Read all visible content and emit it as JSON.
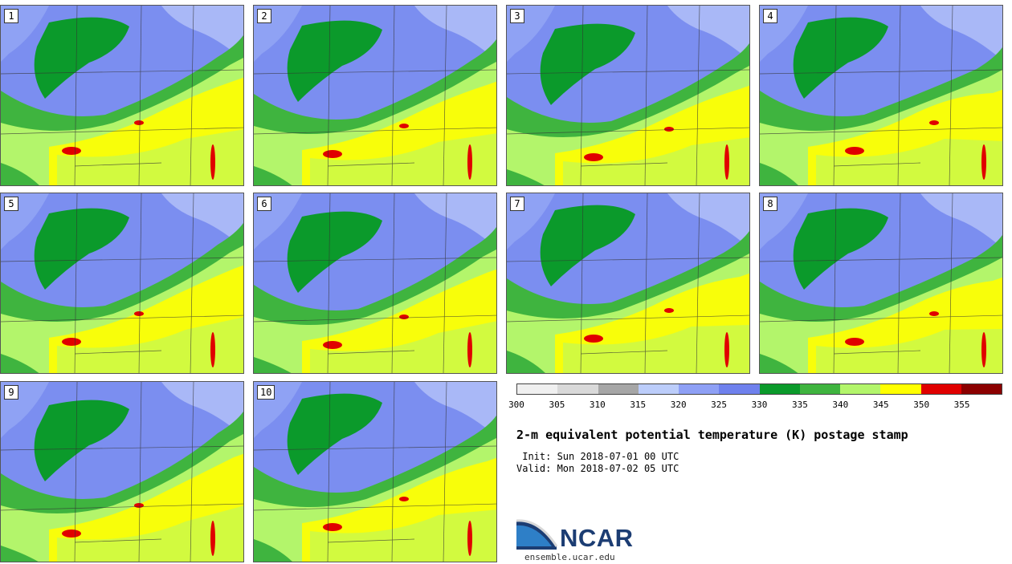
{
  "colorbar": {
    "colors": [
      "#f0f0f0",
      "#d9d9d9",
      "#a6a6a6",
      "#bccdfa",
      "#8ea0f5",
      "#6f81ed",
      "#0b9a2b",
      "#3fb43f",
      "#b3f56b",
      "#ffff00",
      "#e00000",
      "#8b0000"
    ],
    "ticks": [
      "300",
      "305",
      "310",
      "315",
      "320",
      "325",
      "330",
      "335",
      "340",
      "345",
      "350",
      "355"
    ]
  },
  "title": "2-m equivalent potential temperature (K) postage stamp",
  "init": " Init: Sun 2018-07-01 00 UTC",
  "valid": "Valid: Mon 2018-07-02 05 UTC",
  "logo": {
    "name": "NCAR",
    "url": "ensemble.ucar.edu"
  },
  "members": [
    "1",
    "2",
    "3",
    "4",
    "5",
    "6",
    "7",
    "8",
    "9",
    "10"
  ]
}
